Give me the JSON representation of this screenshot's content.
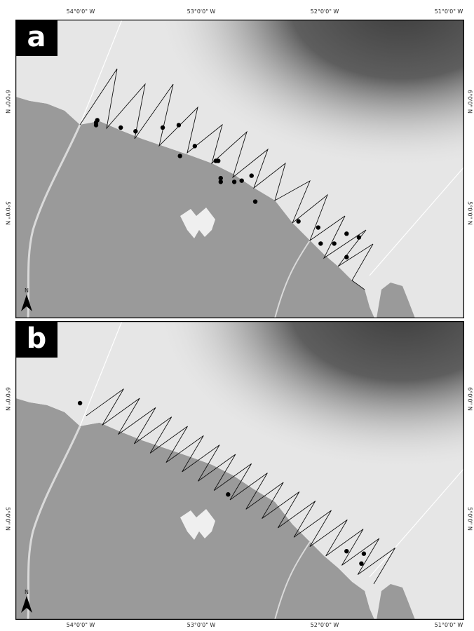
{
  "axis": {
    "x_ticks": [
      "54°0'0\" W",
      "53°0'0\" W",
      "52°0'0\" W",
      "51°0'0\" W"
    ],
    "y_ticks": [
      "6°0'0\" N",
      "5°0'0\" N"
    ]
  },
  "panels": [
    {
      "label": "a",
      "north_label": "N",
      "sightings": [
        [
          -53.74,
          5.85
        ],
        [
          -53.75,
          5.83
        ],
        [
          -53.75,
          5.81
        ],
        [
          -53.55,
          5.79
        ],
        [
          -53.43,
          5.76
        ],
        [
          -53.21,
          5.79
        ],
        [
          -53.08,
          5.81
        ],
        [
          -53.07,
          5.56
        ],
        [
          -52.95,
          5.64
        ],
        [
          -52.78,
          5.52
        ],
        [
          -52.76,
          5.52
        ],
        [
          -52.74,
          5.38
        ],
        [
          -52.74,
          5.35
        ],
        [
          -52.63,
          5.35
        ],
        [
          -52.57,
          5.36
        ],
        [
          -52.49,
          5.4
        ],
        [
          -52.46,
          5.19
        ],
        [
          -52.11,
          5.03
        ],
        [
          -51.95,
          4.98
        ],
        [
          -51.93,
          4.85
        ],
        [
          -51.82,
          4.85
        ],
        [
          -51.72,
          4.93
        ],
        [
          -51.62,
          4.9
        ],
        [
          -51.72,
          4.74
        ]
      ]
    },
    {
      "label": "b",
      "north_label": "N",
      "sightings": [
        [
          -53.88,
          6.0
        ],
        [
          -52.68,
          5.26
        ],
        [
          -51.72,
          4.8
        ],
        [
          -51.58,
          4.78
        ],
        [
          -51.6,
          4.7
        ]
      ]
    }
  ],
  "colors": {
    "land": "#9a9a9a",
    "shelf": "#e6e6e6",
    "deep": "#5e5e5e",
    "track": "#111111",
    "sighting": "#000000",
    "river": "#dadada"
  }
}
